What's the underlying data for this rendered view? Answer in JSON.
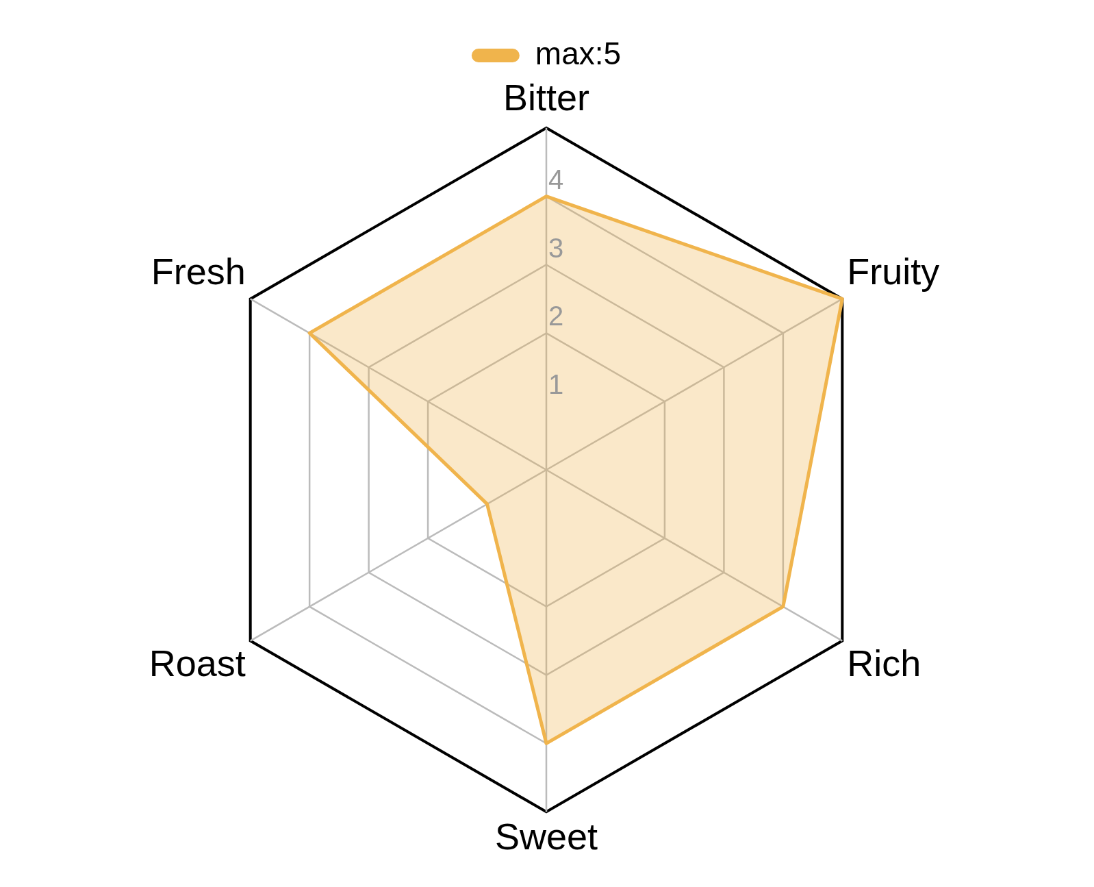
{
  "chart_data": {
    "type": "radar",
    "categories": [
      "Bitter",
      "Fruity",
      "Rich",
      "Sweet",
      "Roast",
      "Fresh"
    ],
    "series": [
      {
        "name": "max:5",
        "color": "#f0b44c",
        "values": [
          4,
          5,
          4,
          4,
          1,
          4
        ]
      }
    ],
    "ylim": [
      0,
      5
    ],
    "yticks": [
      1,
      2,
      3,
      4
    ],
    "grid": true,
    "legend": "top",
    "marker": "none"
  }
}
